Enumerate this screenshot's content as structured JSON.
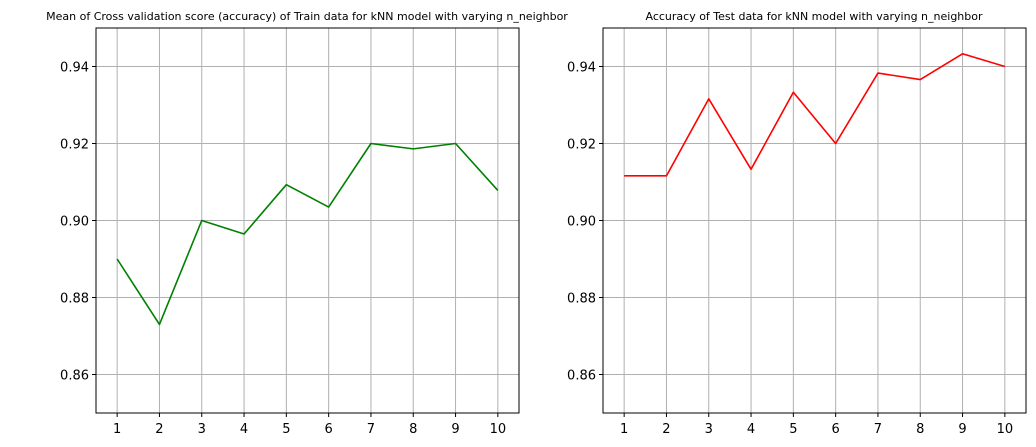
{
  "chart_data": [
    {
      "type": "line",
      "title": "Mean of Cross validation score (accuracy) of Train data for kNN model with varying n_neighbor",
      "xlabel": "",
      "ylabel": "",
      "x": [
        1,
        2,
        3,
        4,
        5,
        6,
        7,
        8,
        9,
        10
      ],
      "series": [
        {
          "values": [
            0.89,
            0.873,
            0.9,
            0.8965,
            0.9093,
            0.9035,
            0.92,
            0.9186,
            0.92,
            0.9078
          ],
          "color": "#008000"
        }
      ],
      "xlim": [
        0.5,
        10.5
      ],
      "ylim": [
        0.85,
        0.95
      ],
      "xticks": [
        1,
        2,
        3,
        4,
        5,
        6,
        7,
        8,
        9,
        10
      ],
      "yticks": [
        0.86,
        0.88,
        0.9,
        0.92,
        0.94
      ],
      "ytick_labels": [
        "0.86",
        "0.88",
        "0.90",
        "0.92",
        "0.94"
      ],
      "grid": true
    },
    {
      "type": "line",
      "title": "Accuracy of Test data for kNN model with varying n_neighbor",
      "xlabel": "",
      "ylabel": "",
      "x": [
        1,
        2,
        3,
        4,
        5,
        6,
        7,
        8,
        9,
        10
      ],
      "series": [
        {
          "values": [
            0.9116,
            0.9116,
            0.9316,
            0.9133,
            0.9333,
            0.92,
            0.9383,
            0.9366,
            0.9433,
            0.94
          ],
          "color": "#ff0000"
        }
      ],
      "xlim": [
        0.5,
        10.5
      ],
      "ylim": [
        0.85,
        0.95
      ],
      "xticks": [
        1,
        2,
        3,
        4,
        5,
        6,
        7,
        8,
        9,
        10
      ],
      "yticks": [
        0.86,
        0.88,
        0.9,
        0.92,
        0.94
      ],
      "ytick_labels": [
        "0.86",
        "0.88",
        "0.90",
        "0.92",
        "0.94"
      ],
      "grid": true
    }
  ]
}
